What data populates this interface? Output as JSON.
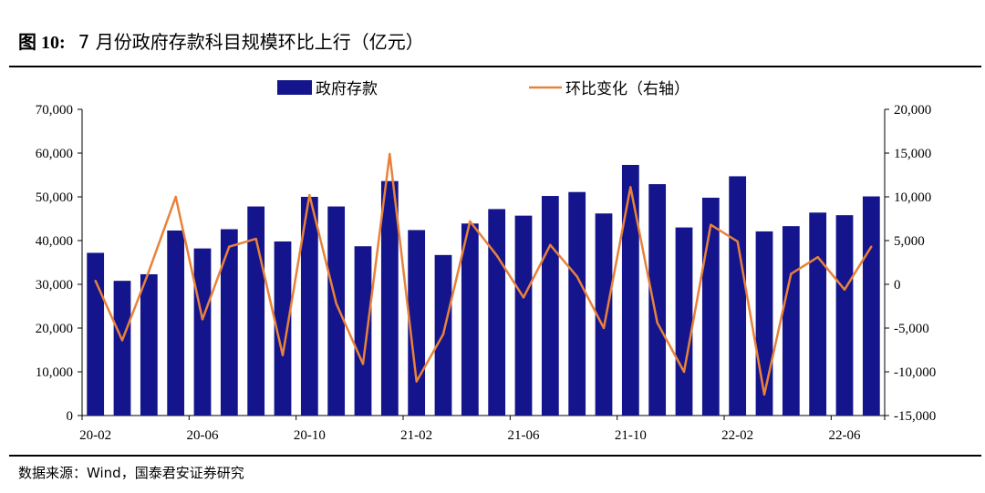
{
  "figure": {
    "number": "图 10:",
    "title": "7 月份政府存款科目规模环比上行（亿元）",
    "source": "数据来源：Wind，国泰君安证券研究"
  },
  "colors": {
    "bar": "#14148C",
    "line": "#E8823A",
    "axis": "#000000"
  },
  "chart_data": {
    "type": "bar+line",
    "categories": [
      "20-02",
      "20-03",
      "20-04",
      "20-05",
      "20-06",
      "20-07",
      "20-08",
      "20-09",
      "20-10",
      "20-11",
      "20-12",
      "21-01",
      "21-02",
      "21-03",
      "21-04",
      "21-05",
      "21-06",
      "21-07",
      "21-08",
      "21-09",
      "21-10",
      "21-11",
      "21-12",
      "22-01",
      "22-02",
      "22-03",
      "22-04",
      "22-05",
      "22-06",
      "22-07"
    ],
    "x_tick_labels": [
      "20-02",
      "20-06",
      "20-10",
      "21-02",
      "21-06",
      "21-10",
      "22-02",
      "22-06"
    ],
    "x_tick_every": 4,
    "series": [
      {
        "name": "政府存款",
        "type": "bar",
        "axis": "left",
        "values": [
          37200,
          30800,
          32300,
          42300,
          38200,
          42600,
          47800,
          39800,
          50000,
          47800,
          38700,
          53600,
          42400,
          36700,
          43900,
          47200,
          45700,
          50200,
          51100,
          46200,
          57300,
          52900,
          43000,
          49800,
          54700,
          42100,
          43300,
          46400,
          45800,
          50100
        ]
      },
      {
        "name": "环比变化（右轴）",
        "type": "line",
        "axis": "right",
        "values": [
          400,
          -6400,
          1500,
          10000,
          -4000,
          4300,
          5200,
          -8100,
          10200,
          -2200,
          -9100,
          14900,
          -11100,
          -5700,
          7200,
          3300,
          -1500,
          4500,
          900,
          -5000,
          11100,
          -4400,
          -10000,
          6800,
          4900,
          -12600,
          1200,
          3100,
          -600,
          4300
        ]
      }
    ],
    "y_left": {
      "min": 0,
      "max": 70000,
      "step": 10000,
      "tick_labels": [
        "0",
        "10,000",
        "20,000",
        "30,000",
        "40,000",
        "50,000",
        "60,000",
        "70,000"
      ]
    },
    "y_right": {
      "min": -15000,
      "max": 20000,
      "step": 5000,
      "tick_labels": [
        "-15,000",
        "-10,000",
        "-5,000",
        "0",
        "5,000",
        "10,000",
        "15,000",
        "20,000"
      ]
    },
    "grid": false,
    "legend_position": "top"
  }
}
